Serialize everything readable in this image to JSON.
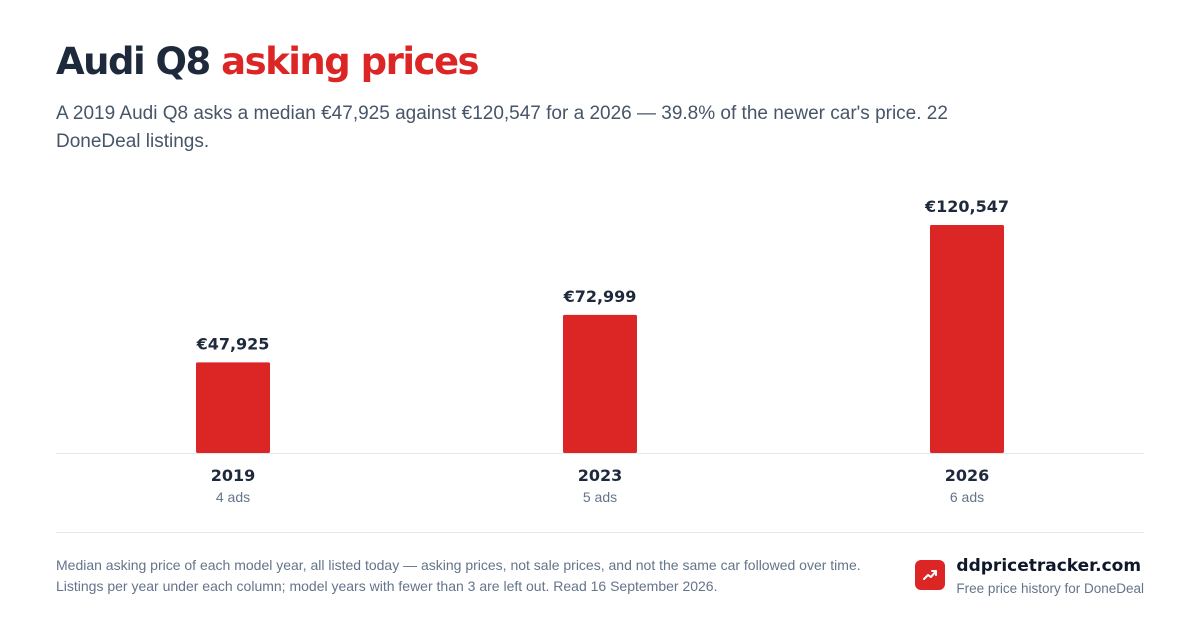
{
  "header": {
    "title_main": "Audi Q8",
    "title_accent": "asking prices",
    "subtitle": "A 2019 Audi Q8 asks a median €47,925 against €120,547 for a 2026 — 39.8% of the newer car's price. 22 DoneDeal listings."
  },
  "chart_data": {
    "type": "bar",
    "categories": [
      "2019",
      "2023",
      "2026"
    ],
    "values": [
      47925,
      72999,
      120547
    ],
    "value_labels": [
      "€47,925",
      "€72,999",
      "€120,547"
    ],
    "sublabels": [
      "4 ads",
      "5 ads",
      "6 ads"
    ],
    "ylim": [
      0,
      120547
    ],
    "grid": false,
    "colors": {
      "bar": "#dc2626",
      "baseline": "#e2e8f0",
      "label": "#1e293b",
      "sublabel": "#64748b"
    }
  },
  "footer": {
    "note": "Median asking price of each model year, all listed today — asking prices, not sale prices, and not the same car followed over time. Listings per year under each column; model years with fewer than 3 are left out. Read 16 September 2026.",
    "brand_name": "ddpricetracker.com",
    "brand_tagline": "Free price history for DoneDeal",
    "brand_icon": "trending-up-icon"
  },
  "colors": {
    "accent": "#dc2626",
    "text": "#1e293b",
    "muted": "#64748b"
  }
}
